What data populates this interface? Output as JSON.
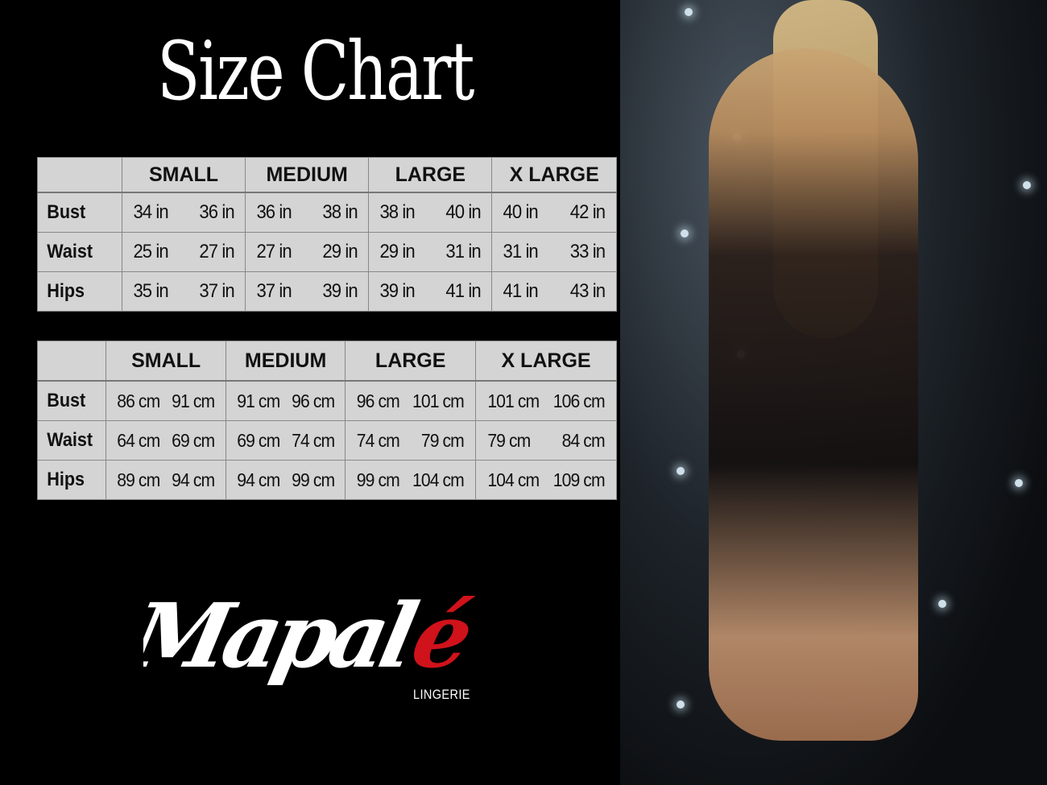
{
  "title": "Size Chart",
  "sizes": [
    "SMALL",
    "MEDIUM",
    "LARGE",
    "X LARGE"
  ],
  "inches_table": {
    "rows": [
      {
        "label": "Bust",
        "values": [
          [
            "34 in",
            "36 in"
          ],
          [
            "36 in",
            "38 in"
          ],
          [
            "38 in",
            "40 in"
          ],
          [
            "40 in",
            "42 in"
          ]
        ]
      },
      {
        "label": "Waist",
        "values": [
          [
            "25 in",
            "27 in"
          ],
          [
            "27 in",
            "29 in"
          ],
          [
            "29 in",
            "31 in"
          ],
          [
            "31 in",
            "33 in"
          ]
        ]
      },
      {
        "label": "Hips",
        "values": [
          [
            "35 in",
            "37 in"
          ],
          [
            "37 in",
            "39 in"
          ],
          [
            "39 in",
            "41 in"
          ],
          [
            "41 in",
            "43 in"
          ]
        ]
      }
    ]
  },
  "cm_table": {
    "rows": [
      {
        "label": "Bust",
        "values": [
          [
            "86 cm",
            "91 cm"
          ],
          [
            "91 cm",
            "96 cm"
          ],
          [
            "96 cm",
            "101 cm"
          ],
          [
            "101 cm",
            "106 cm"
          ]
        ]
      },
      {
        "label": "Waist",
        "values": [
          [
            "64 cm",
            "69 cm"
          ],
          [
            "69 cm",
            "74 cm"
          ],
          [
            "74 cm",
            "79 cm"
          ],
          [
            "79 cm",
            "84 cm"
          ]
        ]
      },
      {
        "label": "Hips",
        "values": [
          [
            "89 cm",
            "94 cm"
          ],
          [
            "94 cm",
            "99 cm"
          ],
          [
            "99 cm",
            "104 cm"
          ],
          [
            "104 cm",
            "109 cm"
          ]
        ]
      }
    ]
  },
  "brand": {
    "logo_text": "Mapalé",
    "tagline": "LINGERIE",
    "accent_color": "#d0121b"
  },
  "colors": {
    "background": "#000000",
    "table_bg": "#d4d4d4"
  }
}
